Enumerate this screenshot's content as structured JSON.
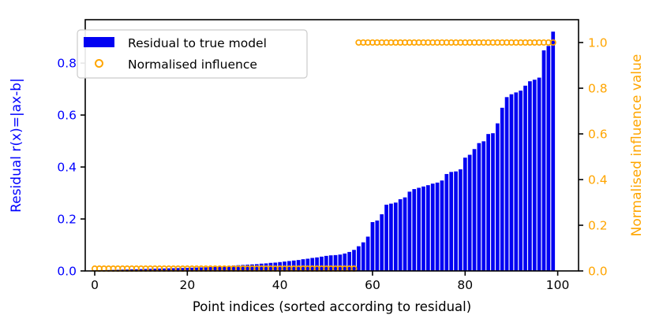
{
  "figure": {
    "colors": {
      "bar_fill": "#0202f2",
      "marker_stroke": "#FFA500",
      "left_axis_color": "#0000ff",
      "right_axis_color": "#FFA500",
      "x_axis_color": "#000000",
      "spine_color": "#000000",
      "legend_border": "#cccccc",
      "legend_bg": "#ffffff"
    }
  },
  "chart_data": {
    "type": "bar",
    "title": "",
    "xlabel": "Point indices (sorted according to residual)",
    "ylabel_left": "Residual r(x)=|ax-b|",
    "ylabel_right": "Normalised influence value",
    "xticks": [
      0,
      20,
      40,
      60,
      80,
      100
    ],
    "yticks_left": [
      0.0,
      0.2,
      0.4,
      0.6,
      0.8
    ],
    "yticks_right": [
      0.0,
      0.2,
      0.4,
      0.6,
      0.8,
      1.0
    ],
    "xlim": [
      -2.05,
      104.5
    ],
    "ylim_left": [
      0,
      0.967
    ],
    "ylim_right": [
      0,
      1.1
    ],
    "grid": false,
    "legend_position": "upper-left",
    "legend": [
      {
        "label": "Residual to true model",
        "glyph": "bar-swatch"
      },
      {
        "label": "Normalised influence",
        "glyph": "open-circle"
      }
    ],
    "series": [
      {
        "name": "Residual to true model",
        "type": "bar",
        "axis": "left",
        "x": "indices 0-99",
        "values": [
          0.002,
          0.0025,
          0.003,
          0.0035,
          0.004,
          0.0045,
          0.005,
          0.0055,
          0.006,
          0.0065,
          0.007,
          0.0075,
          0.008,
          0.0085,
          0.009,
          0.0095,
          0.01,
          0.0105,
          0.011,
          0.0115,
          0.012,
          0.0125,
          0.013,
          0.0135,
          0.014,
          0.015,
          0.016,
          0.017,
          0.018,
          0.019,
          0.021,
          0.022,
          0.023,
          0.024,
          0.025,
          0.026,
          0.028,
          0.029,
          0.031,
          0.032,
          0.034,
          0.036,
          0.038,
          0.04,
          0.042,
          0.045,
          0.047,
          0.05,
          0.052,
          0.055,
          0.058,
          0.06,
          0.061,
          0.063,
          0.067,
          0.073,
          0.081,
          0.095,
          0.11,
          0.132,
          0.188,
          0.194,
          0.218,
          0.255,
          0.259,
          0.263,
          0.276,
          0.283,
          0.305,
          0.315,
          0.32,
          0.325,
          0.33,
          0.336,
          0.34,
          0.348,
          0.373,
          0.381,
          0.383,
          0.391,
          0.436,
          0.447,
          0.469,
          0.492,
          0.499,
          0.527,
          0.53,
          0.568,
          0.628,
          0.669,
          0.68,
          0.687,
          0.694,
          0.713,
          0.73,
          0.736,
          0.744,
          0.849,
          0.866,
          0.921
        ]
      },
      {
        "name": "Normalised influence",
        "type": "scatter",
        "axis": "right",
        "x": "indices 0-99",
        "values": [
          0.01,
          0.01,
          0.01,
          0.01,
          0.01,
          0.01,
          0.01,
          0.01,
          0.01,
          0.01,
          0.01,
          0.01,
          0.01,
          0.01,
          0.01,
          0.01,
          0.01,
          0.01,
          0.01,
          0.01,
          0.01,
          0.01,
          0.01,
          0.01,
          0.01,
          0.01,
          0.01,
          0.01,
          0.01,
          0.01,
          0.01,
          0.01,
          0.01,
          0.01,
          0.01,
          0.01,
          0.01,
          0.01,
          0.01,
          0.01,
          0.01,
          0.01,
          0.01,
          0.01,
          0.01,
          0.01,
          0.01,
          0.01,
          0.01,
          0.01,
          0.01,
          0.01,
          0.01,
          0.01,
          0.01,
          0.01,
          0.01,
          1.0,
          1.0,
          1.0,
          1.0,
          1.0,
          1.0,
          1.0,
          1.0,
          1.0,
          1.0,
          1.0,
          1.0,
          1.0,
          1.0,
          1.0,
          1.0,
          1.0,
          1.0,
          1.0,
          1.0,
          1.0,
          1.0,
          1.0,
          1.0,
          1.0,
          1.0,
          1.0,
          1.0,
          1.0,
          1.0,
          1.0,
          1.0,
          1.0,
          1.0,
          1.0,
          1.0,
          1.0,
          1.0,
          1.0,
          1.0,
          1.0,
          1.0,
          1.0
        ]
      }
    ]
  }
}
